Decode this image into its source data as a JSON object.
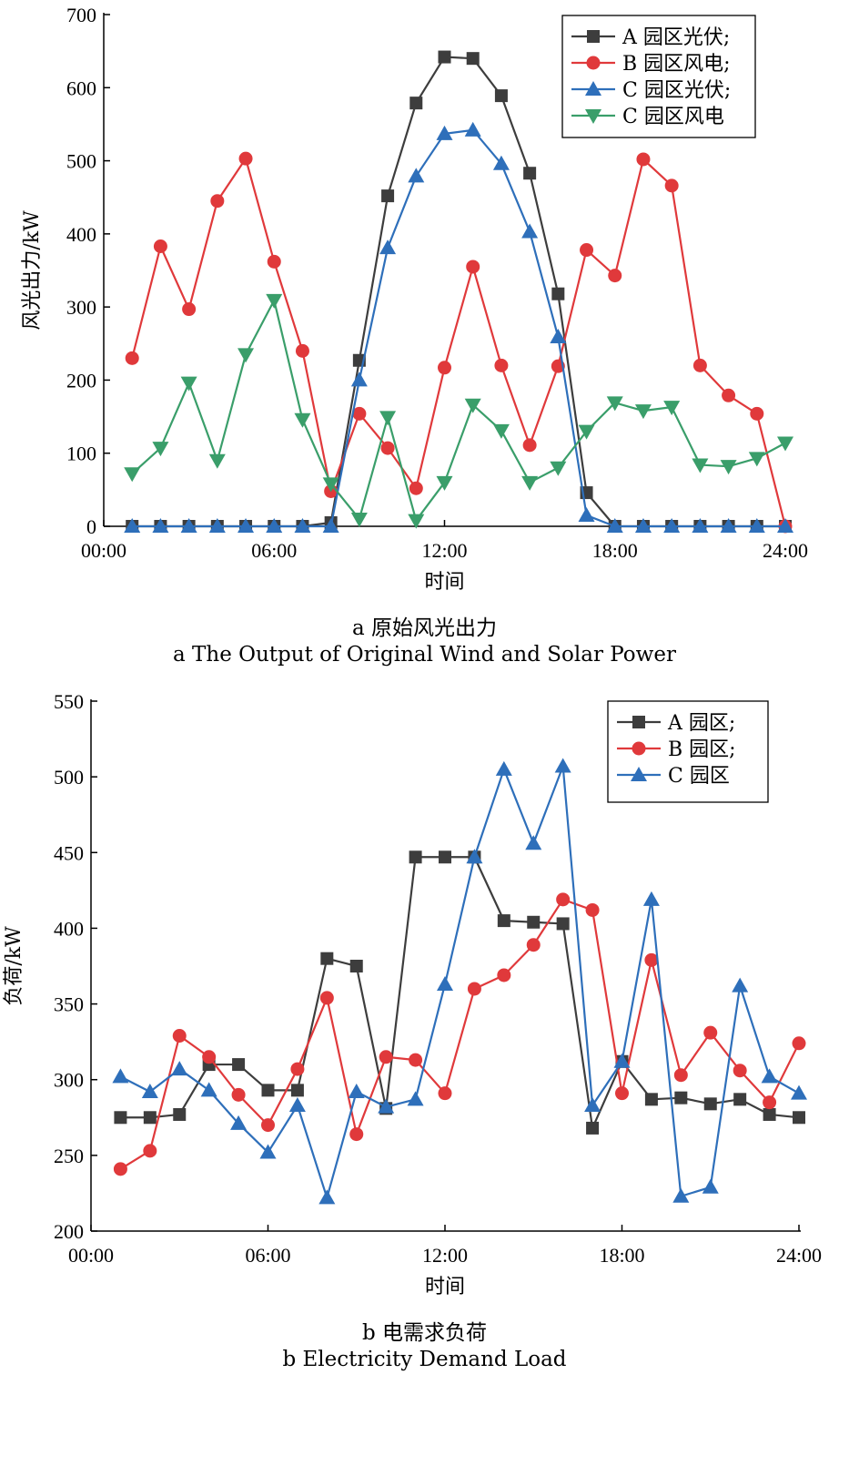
{
  "colors": {
    "black": "#3d3d3d",
    "red": "#e0393b",
    "blue": "#2e6fba",
    "green": "#3a9e6a"
  },
  "chart_data": [
    {
      "type": "line",
      "title": "",
      "xlabel": "时间",
      "ylabel": "风光出力/kW",
      "xlim": [
        0,
        24
      ],
      "ylim": [
        0,
        700
      ],
      "xticks": [
        0,
        6,
        12,
        18,
        24
      ],
      "xtick_labels": [
        "00:00",
        "06:00",
        "12:00",
        "18:00",
        "24:00"
      ],
      "yticks": [
        0,
        100,
        200,
        300,
        400,
        500,
        600,
        700
      ],
      "ytick_labels": [
        "0",
        "100",
        "200",
        "300",
        "400",
        "500",
        "600",
        "700"
      ],
      "x": [
        1,
        2,
        3,
        4,
        5,
        6,
        7,
        8,
        9,
        10,
        11,
        12,
        13,
        14,
        15,
        16,
        17,
        18,
        19,
        20,
        21,
        22,
        23,
        24
      ],
      "legend_position": "top-right",
      "series": [
        {
          "name": "A 园区光伏;",
          "color": "#3d3d3d",
          "marker": "square",
          "values": [
            0,
            0,
            0,
            0,
            0,
            0,
            0,
            5,
            227,
            452,
            579,
            642,
            640,
            589,
            483,
            318,
            46,
            0,
            0,
            0,
            0,
            0,
            0,
            0
          ]
        },
        {
          "name": "B 园区风电;",
          "color": "#e0393b",
          "marker": "circle",
          "values": [
            230,
            383,
            297,
            445,
            503,
            362,
            240,
            48,
            154,
            107,
            52,
            217,
            355,
            220,
            111,
            219,
            378,
            343,
            502,
            466,
            220,
            179,
            154,
            0
          ]
        },
        {
          "name": "C 园区光伏;",
          "color": "#2e6fba",
          "marker": "triangle-up",
          "values": [
            0,
            0,
            0,
            0,
            0,
            0,
            0,
            0,
            200,
            381,
            479,
            537,
            542,
            496,
            403,
            259,
            15,
            0,
            0,
            0,
            0,
            0,
            0,
            0
          ]
        },
        {
          "name": "C 园区风电",
          "color": "#3a9e6a",
          "marker": "triangle-down",
          "values": [
            72,
            107,
            196,
            90,
            235,
            309,
            146,
            58,
            10,
            149,
            8,
            60,
            166,
            131,
            60,
            80,
            130,
            169,
            158,
            163,
            84,
            82,
            93,
            114
          ]
        }
      ]
    },
    {
      "type": "line",
      "title": "",
      "xlabel": "时间",
      "ylabel": "负荷/kW",
      "xlim": [
        0,
        24
      ],
      "ylim": [
        200,
        550
      ],
      "xticks": [
        0,
        6,
        12,
        18,
        24
      ],
      "xtick_labels": [
        "00:00",
        "06:00",
        "12:00",
        "18:00",
        "24:00"
      ],
      "yticks": [
        200,
        250,
        300,
        350,
        400,
        450,
        500,
        550
      ],
      "ytick_labels": [
        "200",
        "250",
        "300",
        "350",
        "400",
        "450",
        "500",
        "550"
      ],
      "x": [
        1,
        2,
        3,
        4,
        5,
        6,
        7,
        8,
        9,
        10,
        11,
        12,
        13,
        14,
        15,
        16,
        17,
        18,
        19,
        20,
        21,
        22,
        23,
        24
      ],
      "legend_position": "top-right",
      "series": [
        {
          "name": "A 园区;",
          "color": "#3d3d3d",
          "marker": "square",
          "values": [
            275,
            275,
            277,
            310,
            310,
            293,
            293,
            380,
            375,
            281,
            447,
            447,
            447,
            405,
            404,
            403,
            268,
            312,
            287,
            288,
            284,
            287,
            277,
            275
          ]
        },
        {
          "name": "B 园区;",
          "color": "#e0393b",
          "marker": "circle",
          "values": [
            241,
            253,
            329,
            315,
            290,
            270,
            307,
            354,
            264,
            315,
            313,
            291,
            360,
            369,
            389,
            419,
            412,
            291,
            379,
            303,
            331,
            306,
            285,
            324
          ]
        },
        {
          "name": "C 园区",
          "color": "#2e6fba",
          "marker": "triangle-up",
          "values": [
            302,
            292,
            307,
            293,
            271,
            252,
            283,
            222,
            292,
            282,
            287,
            363,
            447,
            505,
            456,
            507,
            283,
            312,
            419,
            223,
            229,
            362,
            302,
            291
          ]
        }
      ]
    }
  ],
  "captions": {
    "a_cn": "a  原始风光出力",
    "a_en": "a  The Output of Original Wind and Solar Power",
    "b_cn": "b  电需求负荷",
    "b_en": "b  Electricity Demand Load"
  }
}
